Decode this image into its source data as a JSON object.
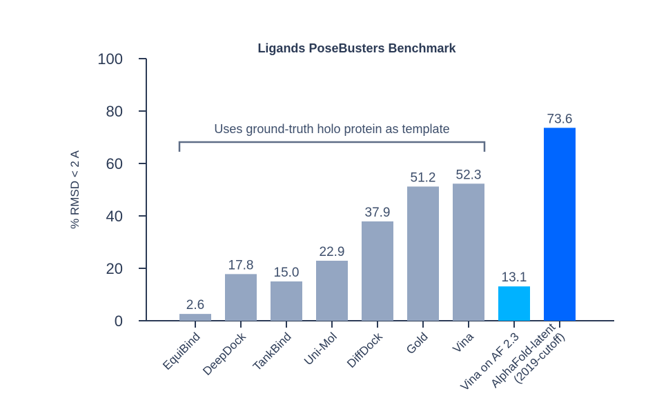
{
  "chart_data": {
    "type": "bar",
    "title": "Ligands PoseBusters Benchmark",
    "xlabel": "",
    "ylabel": "% RMSD < 2 A",
    "ylim": [
      0,
      100
    ],
    "yticks": [
      0,
      20,
      40,
      60,
      80,
      100
    ],
    "grid": false,
    "categories": [
      [
        "EquiBind"
      ],
      [
        "DeepDock"
      ],
      [
        "TankBind"
      ],
      [
        "Uni-Mol"
      ],
      [
        "DiffDock"
      ],
      [
        "Gold"
      ],
      [
        "Vina"
      ],
      [
        "Vina on AF 2.3"
      ],
      [
        "AlphaFold-latent",
        "(2019-cutoff)"
      ]
    ],
    "values": [
      2.6,
      17.8,
      15.0,
      22.9,
      37.9,
      51.2,
      52.3,
      13.1,
      73.6
    ],
    "value_labels": [
      "2.6",
      "17.8",
      "15.0",
      "22.9",
      "37.9",
      "51.2",
      "52.3",
      "13.1",
      "73.6"
    ],
    "bar_colors": [
      "#94a6c2",
      "#94a6c2",
      "#94a6c2",
      "#94a6c2",
      "#94a6c2",
      "#94a6c2",
      "#94a6c2",
      "#00b2ff",
      "#0066ff"
    ],
    "annotation": {
      "text": "Uses ground-truth holo protein as template",
      "from_category": 0,
      "to_category": 6
    },
    "colors": {
      "axis": "#2b3a55",
      "text": "#2b3a55",
      "value_label": "#3d4e6b"
    }
  }
}
